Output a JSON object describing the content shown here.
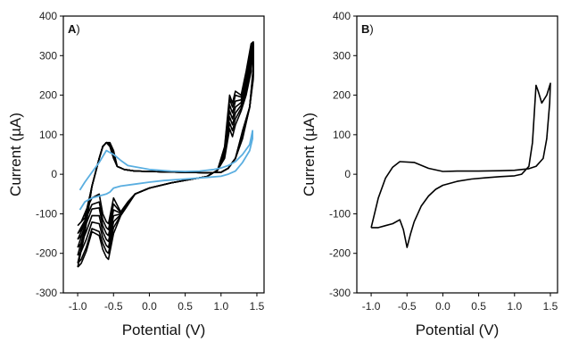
{
  "chart_data": [
    {
      "panel": "A",
      "panel_label_letter": "A",
      "panel_label_suffix": ")",
      "type": "line",
      "xlabel": "Potential (V)",
      "ylabel": "Current (µA)",
      "xlim": [
        -1.2,
        1.6
      ],
      "ylim": [
        -300,
        400
      ],
      "xticks": [
        "-1.0",
        "-0.5",
        "0.0",
        "0.5",
        "1.0",
        "1.5"
      ],
      "xtick_values": [
        -1.0,
        -0.5,
        0.0,
        0.5,
        1.0,
        1.5
      ],
      "yticks": [
        "-300",
        "-200",
        "-100",
        "0",
        "100",
        "200",
        "300",
        "400"
      ],
      "ytick_values": [
        -300,
        -200,
        -100,
        0,
        100,
        200,
        300,
        400
      ],
      "colors": {
        "cycles": "#000000",
        "first_cycle": "#5aaee0"
      },
      "highlight_cycle": {
        "color": "#5aaee0",
        "x": [
          -0.97,
          -0.9,
          -0.8,
          -0.7,
          -0.6,
          -0.5,
          -0.4,
          -0.3,
          0.0,
          0.3,
          0.5,
          0.7,
          0.9,
          1.0,
          1.1,
          1.2,
          1.3,
          1.4,
          1.44,
          1.44,
          1.4,
          1.3,
          1.2,
          1.1,
          1.0,
          0.8,
          0.5,
          0.2,
          0.0,
          -0.2,
          -0.4,
          -0.5,
          -0.55,
          -0.6,
          -0.7,
          -0.8,
          -0.9,
          -0.97
        ],
        "y": [
          -40,
          -20,
          5,
          30,
          60,
          50,
          35,
          22,
          12,
          8,
          7,
          8,
          12,
          16,
          22,
          32,
          50,
          75,
          110,
          90,
          60,
          30,
          8,
          0,
          -5,
          -8,
          -12,
          -16,
          -20,
          -25,
          -30,
          -35,
          -45,
          -50,
          -55,
          -60,
          -70,
          -90
        ]
      },
      "cycles": [
        {
          "peak_anodic_high": 200,
          "peak_cathodic_low": -210,
          "start_low": -235
        },
        {
          "peak_anodic_high": 190,
          "peak_cathodic_low": -195,
          "start_low": -225
        },
        {
          "peak_anodic_high": 175,
          "peak_cathodic_low": -180,
          "start_low": -205
        },
        {
          "peak_anodic_high": 160,
          "peak_cathodic_low": -165,
          "start_low": -185
        },
        {
          "peak_anodic_high": 145,
          "peak_cathodic_low": -150,
          "start_low": -165
        },
        {
          "peak_anodic_high": 130,
          "peak_cathodic_low": -135,
          "start_low": -150
        },
        {
          "peak_anodic_high": 115,
          "peak_cathodic_low": -120,
          "start_low": -130
        }
      ]
    },
    {
      "panel": "B",
      "panel_label_letter": "B",
      "panel_label_suffix": ")",
      "type": "line",
      "xlabel": "Potential (V)",
      "ylabel": "Current (µA)",
      "xlim": [
        -1.2,
        1.6
      ],
      "ylim": [
        -300,
        400
      ],
      "xticks": [
        "-1.0",
        "-0.5",
        "0.0",
        "0.5",
        "1.0",
        "1.5"
      ],
      "xtick_values": [
        -1.0,
        -0.5,
        0.0,
        0.5,
        1.0,
        1.5
      ],
      "yticks": [
        "-300",
        "-200",
        "-100",
        "0",
        "100",
        "200",
        "300",
        "400"
      ],
      "ytick_values": [
        -300,
        -200,
        -100,
        0,
        100,
        200,
        300,
        400
      ],
      "series": [
        {
          "color": "#000000",
          "x": [
            -1.0,
            -0.9,
            -0.8,
            -0.7,
            -0.6,
            -0.55,
            -0.5,
            -0.45,
            -0.4,
            -0.3,
            -0.2,
            -0.1,
            0.0,
            0.2,
            0.4,
            0.6,
            0.8,
            1.0,
            1.1,
            1.2,
            1.25,
            1.3,
            1.33,
            1.38,
            1.45,
            1.5,
            1.49,
            1.45,
            1.4,
            1.3,
            1.2,
            1.0,
            0.8,
            0.5,
            0.2,
            0.0,
            -0.2,
            -0.4,
            -0.6,
            -0.7,
            -0.8,
            -0.9,
            -1.0
          ],
          "y": [
            -135,
            -135,
            -130,
            -125,
            -115,
            -140,
            -185,
            -150,
            -120,
            -80,
            -55,
            -38,
            -28,
            -18,
            -12,
            -9,
            -6,
            -4,
            0,
            20,
            80,
            225,
            210,
            180,
            200,
            230,
            180,
            90,
            40,
            20,
            14,
            10,
            9,
            8,
            8,
            7,
            15,
            30,
            32,
            18,
            -10,
            -60,
            -135
          ]
        }
      ]
    }
  ]
}
